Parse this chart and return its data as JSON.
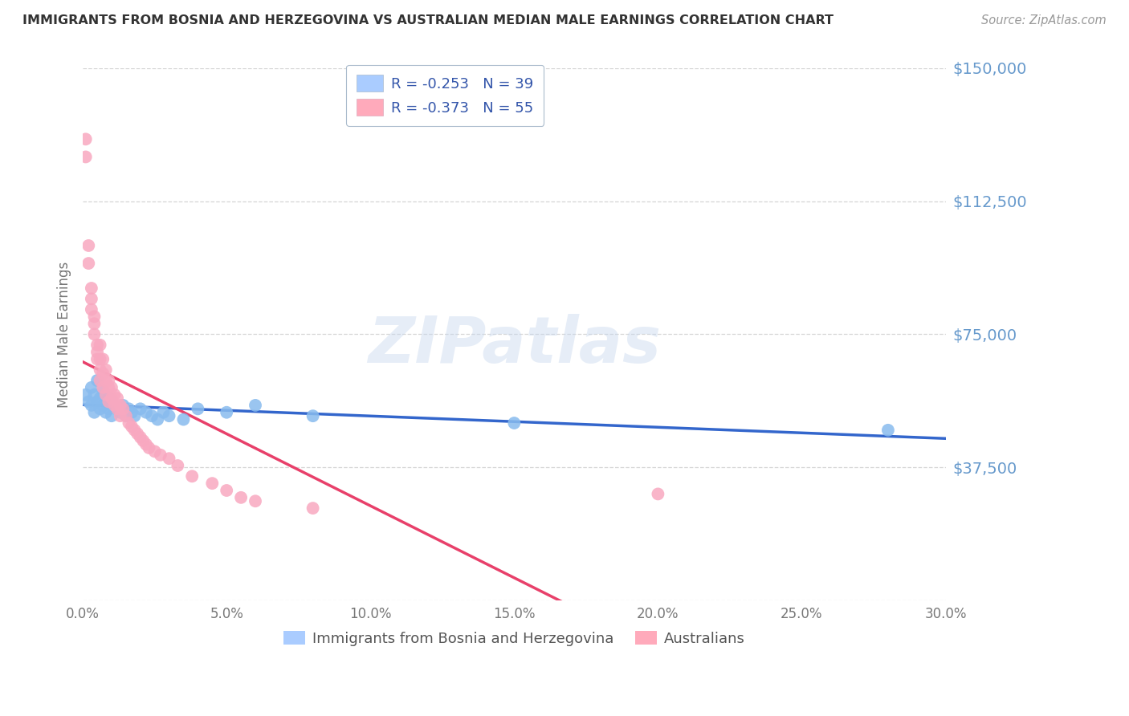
{
  "title": "IMMIGRANTS FROM BOSNIA AND HERZEGOVINA VS AUSTRALIAN MEDIAN MALE EARNINGS CORRELATION CHART",
  "source": "Source: ZipAtlas.com",
  "ylabel": "Median Male Earnings",
  "xlim": [
    0.0,
    0.3
  ],
  "ylim": [
    0,
    150000
  ],
  "watermark_text": "ZIPatlas",
  "blue_color": "#88bbee",
  "blue_line_color": "#3366cc",
  "pink_color": "#f8a8c0",
  "pink_line_color": "#e8406a",
  "background_color": "#ffffff",
  "grid_color": "#bbbbbb",
  "ytick_color": "#6699cc",
  "xtick_color": "#777777",
  "title_color": "#333333",
  "source_color": "#999999",
  "legend_text_color": "#3355aa",
  "bottom_legend_color": "#555555",
  "blue_legend_color": "#aaccff",
  "pink_legend_color": "#ffaabb",
  "series_blue_x": [
    0.001,
    0.002,
    0.003,
    0.003,
    0.004,
    0.004,
    0.005,
    0.005,
    0.006,
    0.006,
    0.007,
    0.007,
    0.008,
    0.008,
    0.009,
    0.009,
    0.01,
    0.01,
    0.011,
    0.012,
    0.013,
    0.014,
    0.015,
    0.016,
    0.017,
    0.018,
    0.02,
    0.022,
    0.024,
    0.026,
    0.028,
    0.03,
    0.035,
    0.04,
    0.05,
    0.06,
    0.08,
    0.15,
    0.28
  ],
  "series_blue_y": [
    58000,
    56000,
    60000,
    55000,
    58000,
    53000,
    62000,
    56000,
    57000,
    54000,
    59000,
    55000,
    56000,
    53000,
    57000,
    54000,
    56000,
    52000,
    55000,
    54000,
    53000,
    55000,
    52000,
    54000,
    53000,
    52000,
    54000,
    53000,
    52000,
    51000,
    53000,
    52000,
    51000,
    54000,
    53000,
    55000,
    52000,
    50000,
    48000
  ],
  "series_pink_x": [
    0.001,
    0.001,
    0.002,
    0.002,
    0.003,
    0.003,
    0.003,
    0.004,
    0.004,
    0.004,
    0.005,
    0.005,
    0.005,
    0.006,
    0.006,
    0.006,
    0.006,
    0.007,
    0.007,
    0.007,
    0.008,
    0.008,
    0.008,
    0.009,
    0.009,
    0.009,
    0.01,
    0.01,
    0.011,
    0.011,
    0.012,
    0.012,
    0.013,
    0.013,
    0.014,
    0.015,
    0.016,
    0.017,
    0.018,
    0.019,
    0.02,
    0.021,
    0.022,
    0.023,
    0.025,
    0.027,
    0.03,
    0.033,
    0.038,
    0.045,
    0.05,
    0.055,
    0.06,
    0.08,
    0.2
  ],
  "series_pink_y": [
    130000,
    125000,
    100000,
    95000,
    88000,
    85000,
    82000,
    80000,
    78000,
    75000,
    72000,
    70000,
    68000,
    72000,
    68000,
    65000,
    62000,
    68000,
    64000,
    60000,
    65000,
    62000,
    58000,
    62000,
    60000,
    56000,
    60000,
    57000,
    58000,
    55000,
    57000,
    54000,
    55000,
    52000,
    54000,
    52000,
    50000,
    49000,
    48000,
    47000,
    46000,
    45000,
    44000,
    43000,
    42000,
    41000,
    40000,
    38000,
    35000,
    33000,
    31000,
    29000,
    28000,
    26000,
    30000
  ],
  "ytick_vals": [
    0,
    37500,
    75000,
    112500,
    150000
  ],
  "ytick_labels": [
    "",
    "$37,500",
    "$75,000",
    "$112,500",
    "$150,000"
  ],
  "xtick_vals": [
    0.0,
    0.05,
    0.1,
    0.15,
    0.2,
    0.25,
    0.3
  ],
  "xtick_labels": [
    "0.0%",
    "5.0%",
    "10.0%",
    "15.0%",
    "20.0%",
    "25.0%",
    "30.0%"
  ]
}
